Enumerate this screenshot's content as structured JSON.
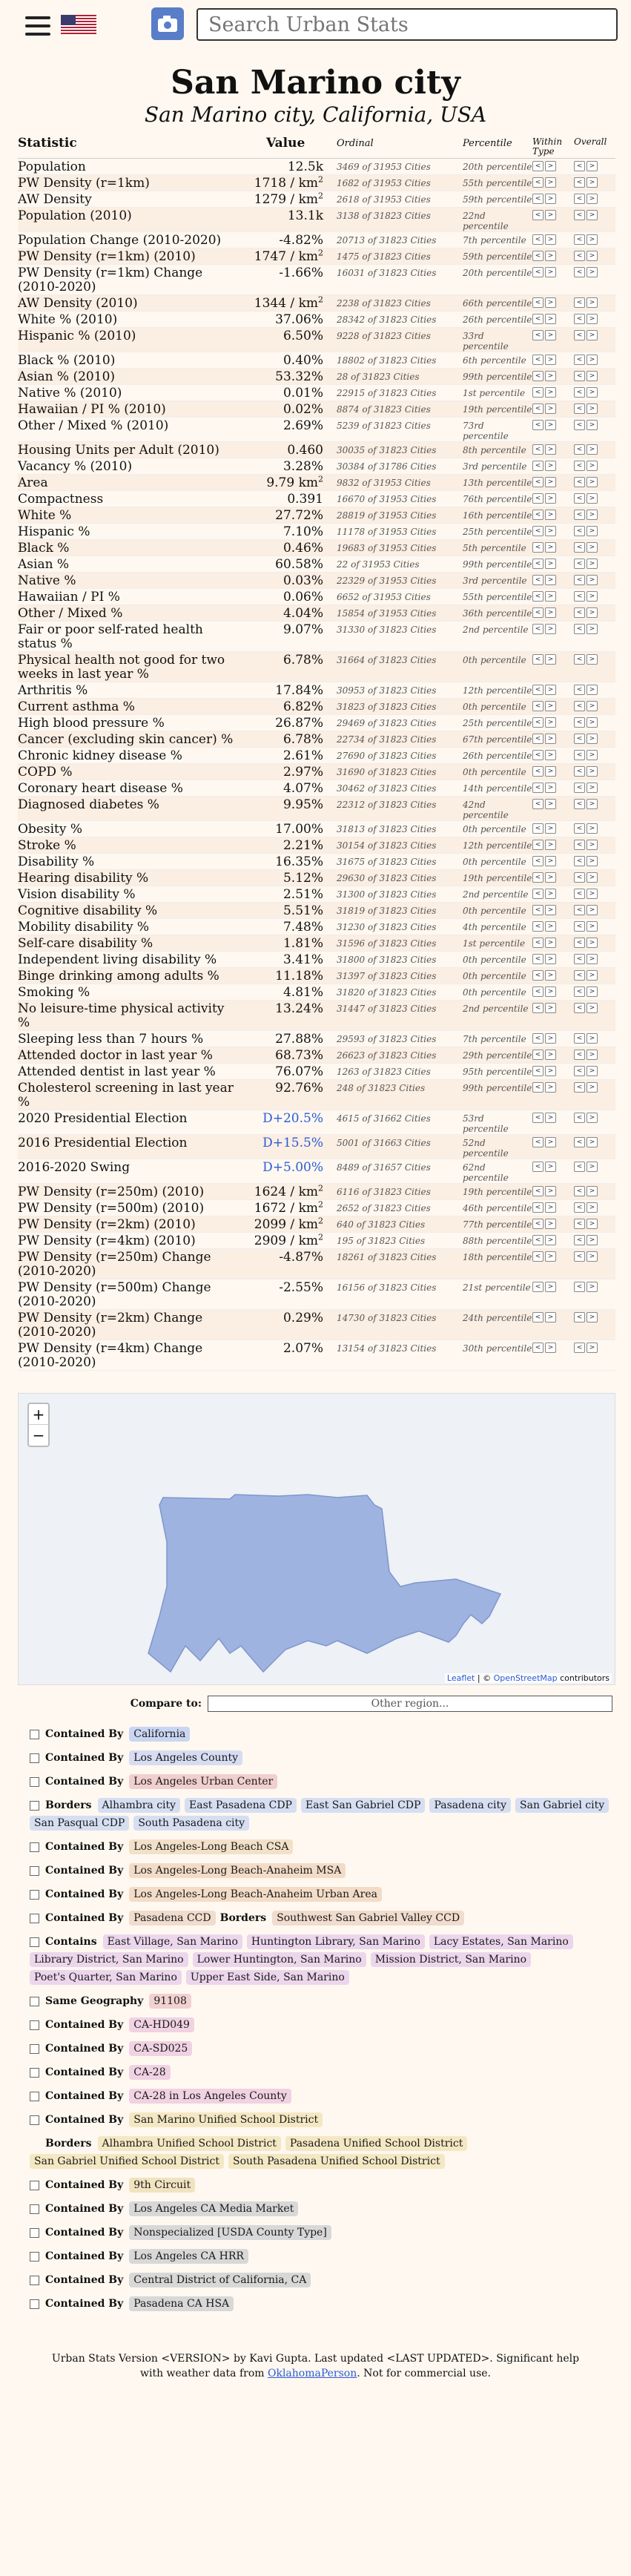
{
  "search": {
    "placeholder": "Search Urban Stats"
  },
  "icons": [
    "hamburger-menu-icon",
    "us-flag-icon",
    "camera-icon",
    "zoom-in-icon",
    "zoom-out-icon",
    "checkbox-icon",
    "arrow-left-icon",
    "arrow-right-icon"
  ],
  "colors": {
    "background": "#fff8f0",
    "map_fill": "#9fb3e0",
    "democratic": "#2a5bd7"
  },
  "page": {
    "title": "San Marino city",
    "subtitle": "San Marino city, California, USA"
  },
  "table": {
    "headers": {
      "stat": "Statistic",
      "value": "Value",
      "ordinal": "Ordinal",
      "percentile": "Percentile",
      "within": "Within Type",
      "overall": "Overall"
    },
    "prev_label": "<",
    "next_label": ">",
    "rows": [
      {
        "stat": "Population",
        "value": "12.5k",
        "ordinal": "3469 of 31953 Cities",
        "pct": "20th percentile"
      },
      {
        "stat": "PW Density (r=1km)",
        "value": "1718 / km²",
        "ordinal": "1682 of 31953 Cities",
        "pct": "55th percentile"
      },
      {
        "stat": "AW Density",
        "value": "1279 / km²",
        "ordinal": "2618 of 31953 Cities",
        "pct": "59th percentile"
      },
      {
        "stat": "Population (2010)",
        "value": "13.1k",
        "ordinal": "3138 of 31823 Cities",
        "pct": "22nd percentile"
      },
      {
        "stat": "Population Change (2010-2020)",
        "value": "-4.82%",
        "ordinal": "20713 of 31823 Cities",
        "pct": "7th percentile"
      },
      {
        "stat": "PW Density (r=1km) (2010)",
        "value": "1747 / km²",
        "ordinal": "1475 of 31823 Cities",
        "pct": "59th percentile"
      },
      {
        "stat": "PW Density (r=1km) Change (2010-2020)",
        "value": "-1.66%",
        "ordinal": "16031 of 31823 Cities",
        "pct": "20th percentile"
      },
      {
        "stat": "AW Density (2010)",
        "value": "1344 / km²",
        "ordinal": "2238 of 31823 Cities",
        "pct": "66th percentile"
      },
      {
        "stat": "White % (2010)",
        "value": "37.06%",
        "ordinal": "28342 of 31823 Cities",
        "pct": "26th percentile"
      },
      {
        "stat": "Hispanic % (2010)",
        "value": "6.50%",
        "ordinal": "9228 of 31823 Cities",
        "pct": "33rd percentile"
      },
      {
        "stat": "Black % (2010)",
        "value": "0.40%",
        "ordinal": "18802 of 31823 Cities",
        "pct": "6th percentile"
      },
      {
        "stat": "Asian % (2010)",
        "value": "53.32%",
        "ordinal": "28 of 31823 Cities",
        "pct": "99th percentile"
      },
      {
        "stat": "Native % (2010)",
        "value": "0.01%",
        "ordinal": "22915 of 31823 Cities",
        "pct": "1st percentile"
      },
      {
        "stat": "Hawaiian / PI % (2010)",
        "value": "0.02%",
        "ordinal": "8874 of 31823 Cities",
        "pct": "19th percentile"
      },
      {
        "stat": "Other / Mixed % (2010)",
        "value": "2.69%",
        "ordinal": "5239 of 31823 Cities",
        "pct": "73rd percentile"
      },
      {
        "stat": "Housing Units per Adult (2010)",
        "value": "0.460",
        "ordinal": "30035 of 31823 Cities",
        "pct": "8th percentile"
      },
      {
        "stat": "Vacancy % (2010)",
        "value": "3.28%",
        "ordinal": "30384 of 31786 Cities",
        "pct": "3rd percentile"
      },
      {
        "stat": "Area",
        "value": "9.79 km²",
        "ordinal": "9832 of 31953 Cities",
        "pct": "13th percentile"
      },
      {
        "stat": "Compactness",
        "value": "0.391",
        "ordinal": "16670 of 31953 Cities",
        "pct": "76th percentile"
      },
      {
        "stat": "White %",
        "value": "27.72%",
        "ordinal": "28819 of 31953 Cities",
        "pct": "16th percentile"
      },
      {
        "stat": "Hispanic %",
        "value": "7.10%",
        "ordinal": "11178 of 31953 Cities",
        "pct": "25th percentile"
      },
      {
        "stat": "Black %",
        "value": "0.46%",
        "ordinal": "19683 of 31953 Cities",
        "pct": "5th percentile"
      },
      {
        "stat": "Asian %",
        "value": "60.58%",
        "ordinal": "22 of 31953 Cities",
        "pct": "99th percentile"
      },
      {
        "stat": "Native %",
        "value": "0.03%",
        "ordinal": "22329 of 31953 Cities",
        "pct": "3rd percentile"
      },
      {
        "stat": "Hawaiian / PI %",
        "value": "0.06%",
        "ordinal": "6652 of 31953 Cities",
        "pct": "55th percentile"
      },
      {
        "stat": "Other / Mixed %",
        "value": "4.04%",
        "ordinal": "15854 of 31953 Cities",
        "pct": "36th percentile"
      },
      {
        "stat": "Fair or poor self-rated health status %",
        "value": "9.07%",
        "ordinal": "31330 of 31823 Cities",
        "pct": "2nd percentile"
      },
      {
        "stat": "Physical health not good for two weeks in last year %",
        "value": "6.78%",
        "ordinal": "31664 of 31823 Cities",
        "pct": "0th percentile"
      },
      {
        "stat": "Arthritis %",
        "value": "17.84%",
        "ordinal": "30953 of 31823 Cities",
        "pct": "12th percentile"
      },
      {
        "stat": "Current asthma %",
        "value": "6.82%",
        "ordinal": "31823 of 31823 Cities",
        "pct": "0th percentile"
      },
      {
        "stat": "High blood pressure %",
        "value": "26.87%",
        "ordinal": "29469 of 31823 Cities",
        "pct": "25th percentile"
      },
      {
        "stat": "Cancer (excluding skin cancer) %",
        "value": "6.78%",
        "ordinal": "22734 of 31823 Cities",
        "pct": "67th percentile"
      },
      {
        "stat": "Chronic kidney disease %",
        "value": "2.61%",
        "ordinal": "27690 of 31823 Cities",
        "pct": "26th percentile"
      },
      {
        "stat": "COPD %",
        "value": "2.97%",
        "ordinal": "31690 of 31823 Cities",
        "pct": "0th percentile"
      },
      {
        "stat": "Coronary heart disease %",
        "value": "4.07%",
        "ordinal": "30462 of 31823 Cities",
        "pct": "14th percentile"
      },
      {
        "stat": "Diagnosed diabetes %",
        "value": "9.95%",
        "ordinal": "22312 of 31823 Cities",
        "pct": "42nd percentile"
      },
      {
        "stat": "Obesity %",
        "value": "17.00%",
        "ordinal": "31813 of 31823 Cities",
        "pct": "0th percentile"
      },
      {
        "stat": "Stroke %",
        "value": "2.21%",
        "ordinal": "30154 of 31823 Cities",
        "pct": "12th percentile"
      },
      {
        "stat": "Disability %",
        "value": "16.35%",
        "ordinal": "31675 of 31823 Cities",
        "pct": "0th percentile"
      },
      {
        "stat": "Hearing disability %",
        "value": "5.12%",
        "ordinal": "29630 of 31823 Cities",
        "pct": "19th percentile"
      },
      {
        "stat": "Vision disability %",
        "value": "2.51%",
        "ordinal": "31300 of 31823 Cities",
        "pct": "2nd percentile"
      },
      {
        "stat": "Cognitive disability %",
        "value": "5.51%",
        "ordinal": "31819 of 31823 Cities",
        "pct": "0th percentile"
      },
      {
        "stat": "Mobility disability %",
        "value": "7.48%",
        "ordinal": "31230 of 31823 Cities",
        "pct": "4th percentile"
      },
      {
        "stat": "Self-care disability %",
        "value": "1.81%",
        "ordinal": "31596 of 31823 Cities",
        "pct": "1st percentile"
      },
      {
        "stat": "Independent living disability %",
        "value": "3.41%",
        "ordinal": "31800 of 31823 Cities",
        "pct": "0th percentile"
      },
      {
        "stat": "Binge drinking among adults %",
        "value": "11.18%",
        "ordinal": "31397 of 31823 Cities",
        "pct": "0th percentile"
      },
      {
        "stat": "Smoking %",
        "value": "4.81%",
        "ordinal": "31820 of 31823 Cities",
        "pct": "0th percentile"
      },
      {
        "stat": "No leisure-time physical activity %",
        "value": "13.24%",
        "ordinal": "31447 of 31823 Cities",
        "pct": "2nd percentile"
      },
      {
        "stat": "Sleeping less than 7 hours %",
        "value": "27.88%",
        "ordinal": "29593 of 31823 Cities",
        "pct": "7th percentile"
      },
      {
        "stat": "Attended doctor in last year %",
        "value": "68.73%",
        "ordinal": "26623 of 31823 Cities",
        "pct": "29th percentile"
      },
      {
        "stat": "Attended dentist in last year %",
        "value": "76.07%",
        "ordinal": "1263 of 31823 Cities",
        "pct": "95th percentile"
      },
      {
        "stat": "Cholesterol screening in last year %",
        "value": "92.76%",
        "ordinal": "248 of 31823 Cities",
        "pct": "99th percentile"
      },
      {
        "stat": "2020 Presidential Election",
        "value": "D+20.5%",
        "ordinal": "4615 of 31662 Cities",
        "pct": "53rd percentile",
        "dem": true
      },
      {
        "stat": "2016 Presidential Election",
        "value": "D+15.5%",
        "ordinal": "5001 of 31663 Cities",
        "pct": "52nd percentile",
        "dem": true
      },
      {
        "stat": "2016-2020 Swing",
        "value": "D+5.00%",
        "ordinal": "8489 of 31657 Cities",
        "pct": "62nd percentile",
        "dem": true
      },
      {
        "stat": "PW Density (r=250m) (2010)",
        "value": "1624 / km²",
        "ordinal": "6116 of 31823 Cities",
        "pct": "19th percentile"
      },
      {
        "stat": "PW Density (r=500m) (2010)",
        "value": "1672 / km²",
        "ordinal": "2652 of 31823 Cities",
        "pct": "46th percentile"
      },
      {
        "stat": "PW Density (r=2km) (2010)",
        "value": "2099 / km²",
        "ordinal": "640 of 31823 Cities",
        "pct": "77th percentile"
      },
      {
        "stat": "PW Density (r=4km) (2010)",
        "value": "2909 / km²",
        "ordinal": "195 of 31823 Cities",
        "pct": "88th percentile"
      },
      {
        "stat": "PW Density (r=250m) Change (2010-2020)",
        "value": "-4.87%",
        "ordinal": "18261 of 31823 Cities",
        "pct": "18th percentile"
      },
      {
        "stat": "PW Density (r=500m) Change (2010-2020)",
        "value": "-2.55%",
        "ordinal": "16156 of 31823 Cities",
        "pct": "21st percentile"
      },
      {
        "stat": "PW Density (r=2km) Change (2010-2020)",
        "value": "0.29%",
        "ordinal": "14730 of 31823 Cities",
        "pct": "24th percentile"
      },
      {
        "stat": "PW Density (r=4km) Change (2010-2020)",
        "value": "2.07%",
        "ordinal": "13154 of 31823 Cities",
        "pct": "30th percentile"
      }
    ]
  },
  "map": {
    "zoom_in": "+",
    "zoom_out": "−",
    "attribution_link1": "Leaflet",
    "attribution_sep": " | © ",
    "attribution_link2": "OpenStreetMap",
    "attribution_tail": " contributors"
  },
  "compare": {
    "label": "Compare to:",
    "placeholder": "Other region..."
  },
  "relationships": [
    {
      "type": "Contained By",
      "tags": [
        {
          "t": "California",
          "c": "state"
        }
      ]
    },
    {
      "type": "Contained By",
      "tags": [
        {
          "t": "Los Angeles County",
          "c": "county"
        }
      ]
    },
    {
      "type": "Contained By",
      "tags": [
        {
          "t": "Los Angeles Urban Center",
          "c": "urban"
        }
      ]
    },
    {
      "type": "Borders",
      "tags": [
        {
          "t": "Alhambra city",
          "c": "city"
        },
        {
          "t": "East Pasadena CDP",
          "c": "cdp"
        },
        {
          "t": "East San Gabriel CDP",
          "c": "cdp"
        },
        {
          "t": "Pasadena city",
          "c": "city"
        },
        {
          "t": "San Gabriel city",
          "c": "city"
        },
        {
          "t": "San Pasqual CDP",
          "c": "cdp"
        },
        {
          "t": "South Pasadena city",
          "c": "city"
        }
      ]
    },
    {
      "type": "Contained By",
      "tags": [
        {
          "t": "Los Angeles-Long Beach CSA",
          "c": "csa"
        }
      ]
    },
    {
      "type": "Contained By",
      "tags": [
        {
          "t": "Los Angeles-Long Beach-Anaheim MSA",
          "c": "msa"
        }
      ]
    },
    {
      "type": "Contained By",
      "tags": [
        {
          "t": "Los Angeles-Long Beach-Anaheim Urban Area",
          "c": "msa"
        }
      ]
    },
    {
      "type": "Contained By",
      "tags": [
        {
          "t": "Pasadena CCD",
          "c": "ccd"
        }
      ],
      "extra_type": "Borders",
      "extra_tags": [
        {
          "t": "Southwest San Gabriel Valley CCD",
          "c": "ccd"
        }
      ]
    },
    {
      "type": "Contains",
      "tags": [
        {
          "t": "East Village, San Marino",
          "c": "hood"
        },
        {
          "t": "Huntington Library, San Marino",
          "c": "hood"
        },
        {
          "t": "Lacy Estates, San Marino",
          "c": "hood"
        },
        {
          "t": "Library District, San Marino",
          "c": "hood"
        },
        {
          "t": "Lower Huntington, San Marino",
          "c": "hood"
        },
        {
          "t": "Mission District, San Marino",
          "c": "hood"
        },
        {
          "t": "Poet's Quarter, San Marino",
          "c": "hood"
        },
        {
          "t": "Upper East Side, San Marino",
          "c": "hood"
        }
      ]
    },
    {
      "type": "Same Geography",
      "tags": [
        {
          "t": "91108",
          "c": "zip"
        }
      ]
    },
    {
      "type": "Contained By",
      "tags": [
        {
          "t": "CA-HD049",
          "c": "cd"
        }
      ]
    },
    {
      "type": "Contained By",
      "tags": [
        {
          "t": "CA-SD025",
          "c": "cd"
        }
      ]
    },
    {
      "type": "Contained By",
      "tags": [
        {
          "t": "CA-28",
          "c": "cd"
        }
      ]
    },
    {
      "type": "Contained By",
      "tags": [
        {
          "t": "CA-28 in Los Angeles County",
          "c": "cd"
        }
      ]
    },
    {
      "type": "Contained By",
      "tags": [
        {
          "t": "San Marino Unified School District",
          "c": "usd"
        }
      ]
    },
    {
      "type": "Borders",
      "nocheck": true,
      "tags": [
        {
          "t": "Alhambra Unified School District",
          "c": "usd"
        },
        {
          "t": "Pasadena Unified School District",
          "c": "usd"
        },
        {
          "t": "San Gabriel Unified School District",
          "c": "usd"
        },
        {
          "t": "South Pasadena Unified School District",
          "c": "usd"
        }
      ]
    },
    {
      "type": "Contained By",
      "tags": [
        {
          "t": "9th Circuit",
          "c": "circ"
        }
      ]
    },
    {
      "type": "Contained By",
      "tags": [
        {
          "t": "Los Angeles CA Media Market",
          "c": "media"
        }
      ]
    },
    {
      "type": "Contained By",
      "tags": [
        {
          "t": "Nonspecialized [USDA County Type]",
          "c": "county-type"
        }
      ]
    },
    {
      "type": "Contained By",
      "tags": [
        {
          "t": "Los Angeles CA HRR",
          "c": "hrr"
        }
      ]
    },
    {
      "type": "Contained By",
      "tags": [
        {
          "t": "Central District of California, CA",
          "c": "region"
        }
      ]
    },
    {
      "type": "Contained By",
      "tags": [
        {
          "t": "Pasadena CA HSA",
          "c": "hsa"
        }
      ]
    }
  ],
  "footer": {
    "text1": "Urban Stats Version <VERSION> by Kavi Gupta. Last updated <LAST UPDATED>. Significant help with weather data from ",
    "link": "OklahomaPerson",
    "text2": ". Not for commercial use."
  }
}
